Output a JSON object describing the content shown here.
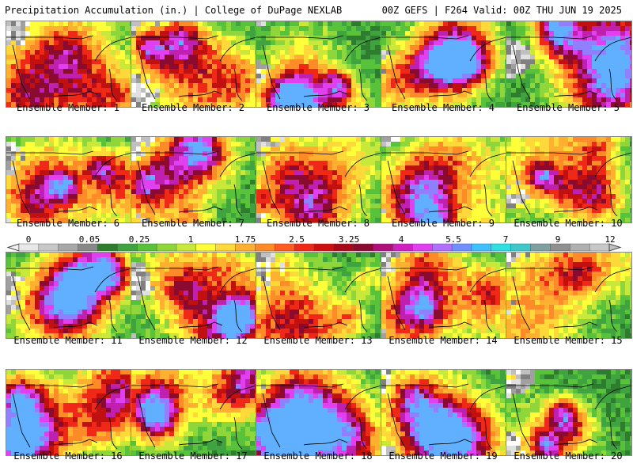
{
  "header": {
    "title": "Precipitation Accumulation (in.) | College of DuPage NEXLAB",
    "run_info": "00Z GEFS | F264 Valid: 00Z THU JUN 19 2025"
  },
  "panels": [
    {
      "label": "Ensemble Member: 1"
    },
    {
      "label": "Ensemble Member: 2"
    },
    {
      "label": "Ensemble Member: 3"
    },
    {
      "label": "Ensemble Member: 4"
    },
    {
      "label": "Ensemble Member: 5"
    },
    {
      "label": "Ensemble Member: 6"
    },
    {
      "label": "Ensemble Member: 7"
    },
    {
      "label": "Ensemble Member: 8"
    },
    {
      "label": "Ensemble Member: 9"
    },
    {
      "label": "Ensemble Member: 10"
    },
    {
      "label": "Ensemble Member: 11"
    },
    {
      "label": "Ensemble Member: 12"
    },
    {
      "label": "Ensemble Member: 13"
    },
    {
      "label": "Ensemble Member: 14"
    },
    {
      "label": "Ensemble Member: 15"
    },
    {
      "label": "Ensemble Member: 16"
    },
    {
      "label": "Ensemble Member: 17"
    },
    {
      "label": "Ensemble Member: 18"
    },
    {
      "label": "Ensemble Member: 19"
    },
    {
      "label": "Ensemble Member: 20"
    }
  ],
  "colorbar": {
    "tick_labels": [
      "0",
      "0.05",
      "0.25",
      "1",
      "1.75",
      "2.5",
      "3.25",
      "4",
      "5.5",
      "7",
      "9",
      "12"
    ],
    "colors": [
      "#e8e8e8",
      "#c8c8c8",
      "#a8a8a8",
      "#888888",
      "#2e7d2e",
      "#3fa33f",
      "#58c23a",
      "#8fd63a",
      "#c8e83a",
      "#ffff3a",
      "#ffd83a",
      "#ffb030",
      "#ff8a28",
      "#ff5a20",
      "#f02818",
      "#d01010",
      "#a80818",
      "#8a0a30",
      "#b0107a",
      "#d020c0",
      "#e040f0",
      "#b070ff",
      "#7090ff",
      "#40c0ff",
      "#30e0e0",
      "#40c8c8",
      "#80a0a0",
      "#909090",
      "#b0b0b0",
      "#c8c8c8"
    ]
  },
  "map_palette": {
    "dry": [
      "#ffffff",
      "#e0e0e0",
      "#c0c0c0",
      "#a0a0a0",
      "#808080"
    ],
    "wet": [
      "#2e7d2e",
      "#3fa33f",
      "#58c23a",
      "#8fd63a",
      "#c8e83a",
      "#ffff3a",
      "#ffd83a",
      "#ffb030",
      "#ff8a28",
      "#f02818",
      "#c01010",
      "#8a0a30",
      "#c020b0",
      "#e040f0",
      "#9080ff",
      "#60b0ff"
    ]
  }
}
